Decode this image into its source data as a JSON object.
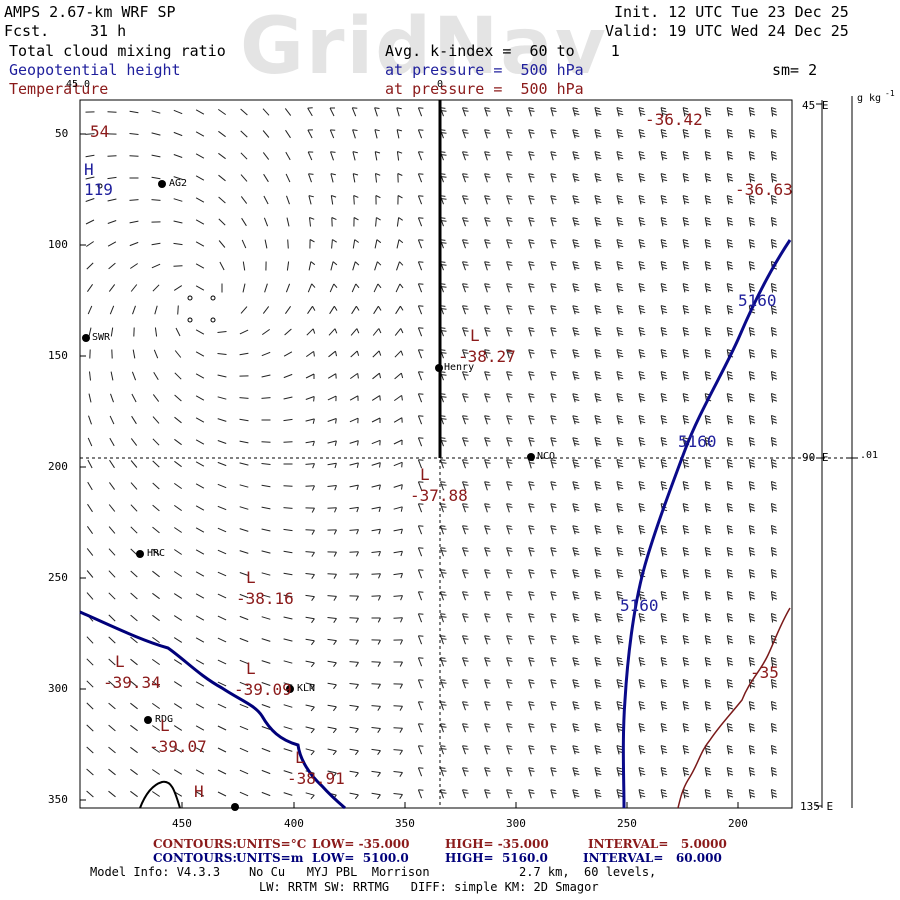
{
  "watermark": "GridNav",
  "header": {
    "model": "AMPS 2.67-km WRF SP",
    "fcst_label": "Fcst.",
    "fcst_value": "31 h",
    "init": "Init. 12 UTC Tue 23 Dec 25",
    "valid": "Valid: 19 UTC Wed 24 Dec 25",
    "field1": "Total cloud mixing ratio",
    "field1_avg": "Avg. k-index =  60 to    1",
    "field2": "Geopotential height",
    "field2_level": "at pressure =  500 hPa",
    "sm": "sm= 2",
    "field3": "Temperature",
    "field3_level": "at pressure =  500 hPa"
  },
  "colors": {
    "blue": "#1f1f9c",
    "red": "#8b1a1a",
    "black": "#000000"
  },
  "axes": {
    "x_ticks": [
      "450",
      "400",
      "350",
      "300",
      "250",
      "200"
    ],
    "y_ticks": [
      "50",
      "100",
      "150",
      "200",
      "250",
      "300",
      "350"
    ],
    "top_marker": "0",
    "left_marker": "45.0",
    "right_labels": [
      "45 E",
      "90 E",
      "135 E"
    ],
    "colorbar_unit": "g kg",
    "colorbar_exp": "-1",
    "colorbar_value": ".01"
  },
  "stations": [
    {
      "id": "AG2"
    },
    {
      "id": "SWR"
    },
    {
      "id": "Henry"
    },
    {
      "id": "NCO"
    },
    {
      "id": "HRC"
    },
    {
      "id": "KLN"
    },
    {
      "id": "RDG"
    }
  ],
  "labels": {
    "t54": "54",
    "h_nw": "H",
    "h_nw_val": "119",
    "l_henry": "L",
    "l_henry_val": "-38.27",
    "l_center": "L",
    "l_center_val": "-37.88",
    "l_mid": "L",
    "l_mid_val": "-38.16",
    "l_west": "L",
    "l_west_val": "-39.34",
    "l_kln": "L",
    "l_kln_val": "-39.09",
    "l_rdg": "L",
    "l_rdg_val": "-39.07",
    "l_south": "L",
    "l_south_val": "-38.91",
    "h_south": "H",
    "t_ne1": "-36.42",
    "t_ne2": "-36.63",
    "t_35": "-35",
    "z1": "5160",
    "z2": "5160",
    "z3": "5160"
  },
  "footer": {
    "line1_contours": "CONTOURS:",
    "line1_units": "UNITS=°C",
    "line1_low": "LOW= -35.000",
    "line1_high": "HIGH= -35.000",
    "line1_interval": "INTERVAL=   5.0000",
    "line2_contours": "CONTOURS:",
    "line2_units": "UNITS=m",
    "line2_low": "LOW=  5100.0",
    "line2_high": "HIGH=  5160.0",
    "line2_interval": "INTERVAL=   60.000",
    "model_info": "Model Info: V4.3.3    No Cu   MYJ PBL  Morrison",
    "model_info_right": "2.7 km,  60 levels,",
    "model_info2": "LW: RRTM SW: RRTMG   DIFF: simple KM: 2D Smagor"
  }
}
